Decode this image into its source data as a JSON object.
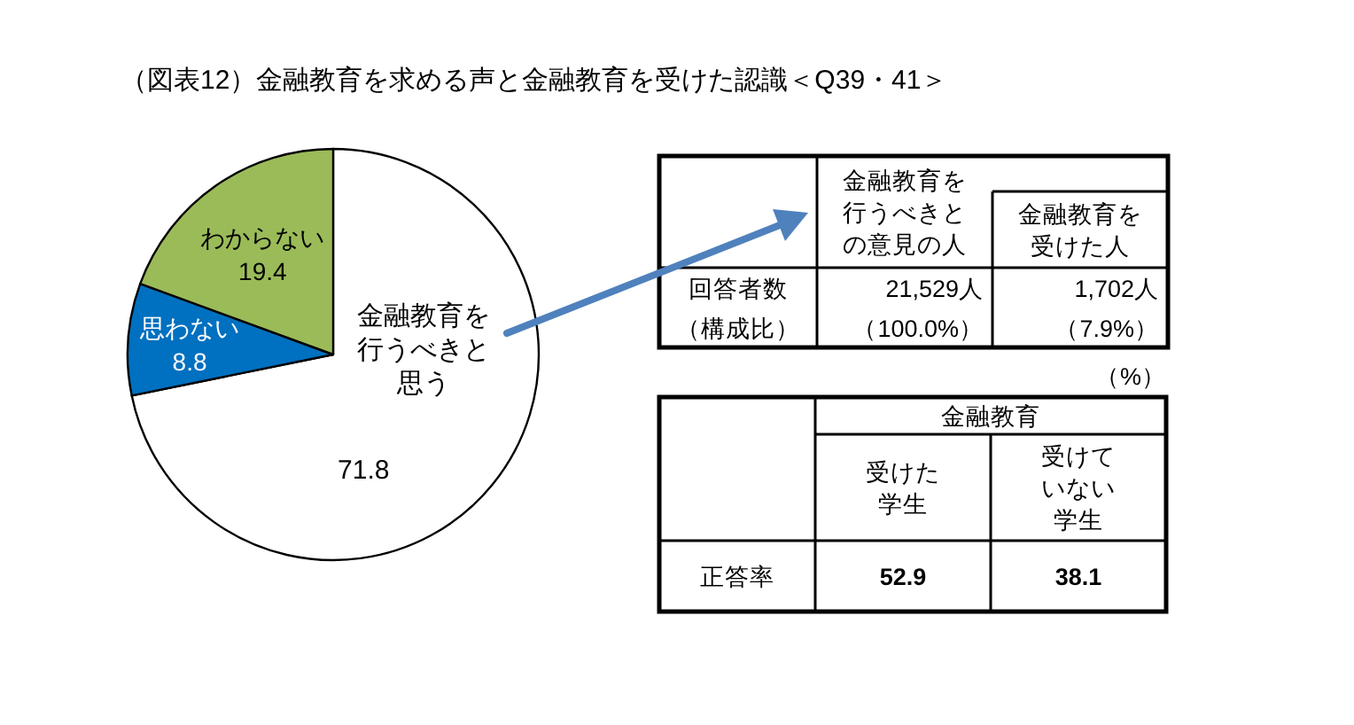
{
  "chart_data": [
    {
      "type": "pie",
      "title": "（図表12）金融教育を求める声と金融教育を受けた認識＜Q39・41＞",
      "categories": [
        "金融教育を行うべきと思う",
        "思わない",
        "わからない"
      ],
      "values": [
        71.8,
        8.8,
        19.4
      ],
      "colors": [
        "#ffffff",
        "#0070c0",
        "#9bbb59"
      ],
      "data_labels": true
    },
    {
      "type": "other",
      "categories": [
        "金融教育を行うべきとの意見の人",
        "金融教育を受けた人"
      ],
      "series": [
        {
          "name": "回答者数",
          "values": [
            21529,
            1702
          ],
          "value_labels": [
            "21,529人",
            "1,702人"
          ]
        },
        {
          "name": "（構成比）",
          "values": [
            100.0,
            7.9
          ],
          "value_labels": [
            "（100.0%）",
            "（7.9%）"
          ]
        }
      ]
    },
    {
      "type": "other",
      "title": "金融教育",
      "categories": [
        "受けた学生",
        "受けていない学生"
      ],
      "series": [
        {
          "name": "正答率",
          "values": [
            52.9,
            38.1
          ]
        }
      ],
      "data_labels": true,
      "annotations": [
        "（%）"
      ]
    }
  ]
}
